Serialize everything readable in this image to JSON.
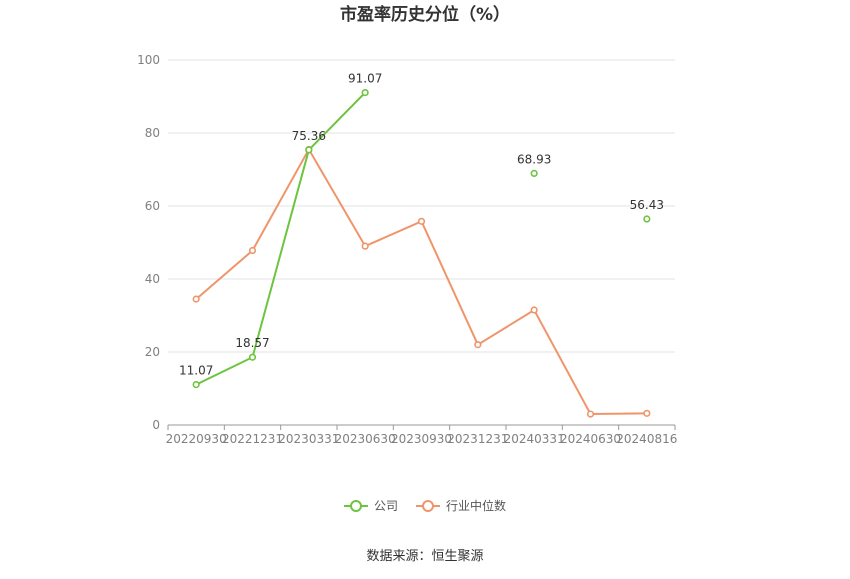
{
  "chart_data": {
    "type": "line",
    "title": "市盈率历史分位（%）",
    "categories": [
      "20220930",
      "20221231",
      "20230331",
      "20230630",
      "20230930",
      "20231231",
      "20240331",
      "20240630",
      "20240816"
    ],
    "ylim": [
      0,
      100
    ],
    "yticks": [
      0,
      20,
      40,
      60,
      80,
      100
    ],
    "grid": true,
    "legend_position": "bottom",
    "series": [
      {
        "name": "公司",
        "color": "#6cc43f",
        "values": [
          11.07,
          18.57,
          75.36,
          91.07,
          null,
          null,
          68.93,
          null,
          56.43
        ],
        "labels": [
          "11.07",
          "18.57",
          "75.36",
          "91.07",
          null,
          null,
          "68.93",
          null,
          "56.43"
        ]
      },
      {
        "name": "行业中位数",
        "color": "#f0946a",
        "values": [
          34.5,
          47.8,
          75.5,
          49.0,
          55.8,
          22.0,
          31.5,
          3.0,
          3.2
        ],
        "labels": [
          null,
          null,
          null,
          null,
          null,
          null,
          null,
          null,
          null
        ]
      }
    ]
  },
  "source": "数据来源：恒生聚源"
}
